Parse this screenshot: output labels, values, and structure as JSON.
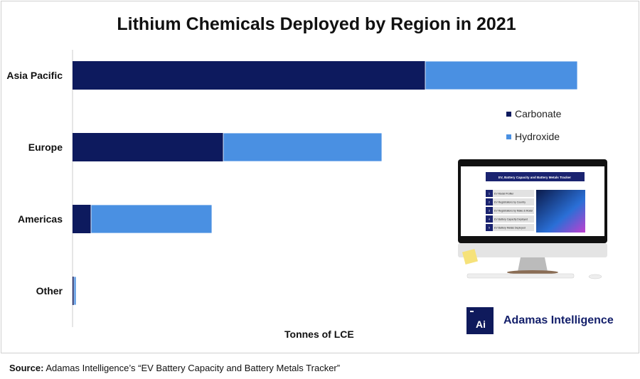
{
  "chart_data": {
    "type": "bar",
    "orientation": "horizontal",
    "stacked": true,
    "title": "Lithium Chemicals Deployed by Region in 2021",
    "xlabel": "Tonnes of LCE",
    "ylabel": "",
    "categories": [
      "Asia Pacific",
      "Europe",
      "Americas",
      "Other"
    ],
    "series": [
      {
        "name": "Carbonate",
        "color": "#0d1a5e",
        "values": [
          496,
          212,
          26,
          2
        ]
      },
      {
        "name": "Hydroxide",
        "color": "#4a90e2",
        "values": [
          214,
          223,
          170,
          3
        ]
      }
    ],
    "xlim": [
      0,
      780
    ],
    "grid": false,
    "legend_position": "right"
  },
  "product_image": {
    "screen_title": "EV, Battery Capacity and Battery Metals Tracker",
    "menu": [
      "EV Model Profiler",
      "EV Registrations by Country",
      "EV Registrations by Make & Model",
      "EV Battery Capacity Deployed",
      "EV Battery Metals Deployed"
    ]
  },
  "logo": {
    "mark": "Ai",
    "name": "Adamas Intelligence"
  },
  "source": {
    "label": "Source:",
    "text": "Adamas Intelligence’s “EV Battery Capacity and Battery Metals Tracker”"
  }
}
